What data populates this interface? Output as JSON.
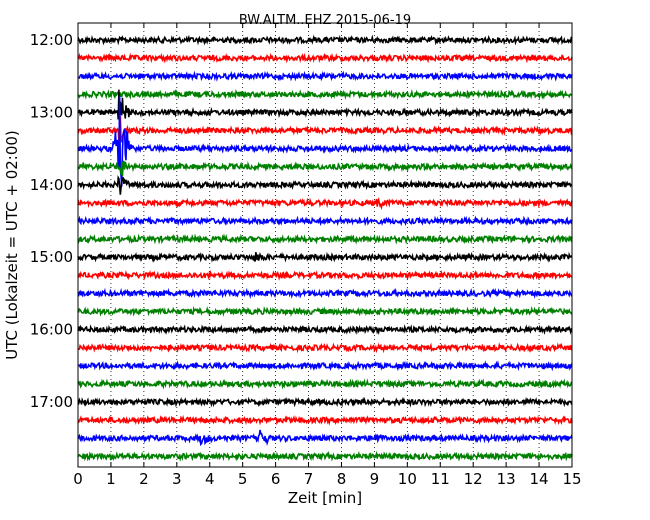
{
  "chart_data": {
    "type": "line",
    "title": "BW.ALTM..EHZ 2015-06-19",
    "xlabel": "Zeit  [min]",
    "ylabel": "UTC (Lokalzeit = UTC + 02:00)",
    "xlim": [
      0,
      15
    ],
    "x_ticks": [
      "0",
      "1",
      "2",
      "3",
      "4",
      "5",
      "6",
      "7",
      "8",
      "9",
      "10",
      "11",
      "12",
      "13",
      "14",
      "15"
    ],
    "y_tick_labels": [
      "12:00",
      "13:00",
      "14:00",
      "15:00",
      "16:00",
      "17:00"
    ],
    "grid": "vertical dotted",
    "colors": [
      "#000000",
      "#ff0000",
      "#0000ff",
      "#008000"
    ],
    "series": [
      {
        "start": "12:00",
        "color": "#000000"
      },
      {
        "start": "12:15",
        "color": "#ff0000"
      },
      {
        "start": "12:30",
        "color": "#0000ff"
      },
      {
        "start": "12:45",
        "color": "#008000"
      },
      {
        "start": "13:00",
        "color": "#000000",
        "events": [
          {
            "minute": 1.25,
            "amplitude": 0.5
          }
        ]
      },
      {
        "start": "13:15",
        "color": "#ff0000",
        "events": [
          {
            "minute": 1.25,
            "amplitude": 0.3
          }
        ]
      },
      {
        "start": "13:30",
        "color": "#0000ff",
        "events": [
          {
            "minute": 1.25,
            "amplitude": 1.0
          },
          {
            "minute": 1.1,
            "amplitude": 0.4
          }
        ]
      },
      {
        "start": "13:45",
        "color": "#008000",
        "events": [
          {
            "minute": 1.25,
            "amplitude": 0.3
          }
        ]
      },
      {
        "start": "14:00",
        "color": "#000000",
        "events": [
          {
            "minute": 1.25,
            "amplitude": 0.25
          }
        ]
      },
      {
        "start": "14:15",
        "color": "#ff0000",
        "events": [
          {
            "minute": 9.1,
            "amplitude": 0.08
          }
        ]
      },
      {
        "start": "14:30",
        "color": "#0000ff"
      },
      {
        "start": "14:45",
        "color": "#008000"
      },
      {
        "start": "15:00",
        "color": "#000000",
        "events": [
          {
            "minute": 5.4,
            "amplitude": 0.07
          }
        ]
      },
      {
        "start": "15:15",
        "color": "#ff0000"
      },
      {
        "start": "15:30",
        "color": "#0000ff"
      },
      {
        "start": "15:45",
        "color": "#008000"
      },
      {
        "start": "16:00",
        "color": "#000000"
      },
      {
        "start": "16:15",
        "color": "#ff0000"
      },
      {
        "start": "16:30",
        "color": "#0000ff"
      },
      {
        "start": "16:45",
        "color": "#008000"
      },
      {
        "start": "17:00",
        "color": "#000000"
      },
      {
        "start": "17:15",
        "color": "#ff0000"
      },
      {
        "start": "17:30",
        "color": "#0000ff",
        "events": [
          {
            "minute": 3.75,
            "amplitude": 0.12
          },
          {
            "minute": 5.55,
            "amplitude": 0.22
          },
          {
            "minute": 9.0,
            "amplitude": 0.1
          }
        ]
      },
      {
        "start": "17:45",
        "color": "#008000"
      }
    ]
  }
}
